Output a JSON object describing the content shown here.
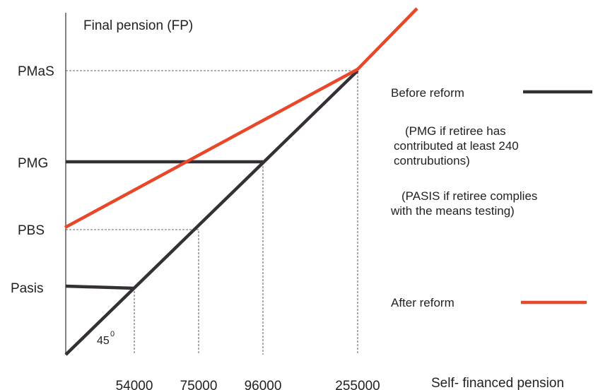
{
  "y_axis_label": "Final pension (FP)",
  "x_axis_label": "Self- financed pension",
  "y_labels": [
    "PMaS",
    "PMG",
    "PBS",
    "Pasis"
  ],
  "x_labels": [
    "54000",
    "75000",
    "96000",
    "255000"
  ],
  "angle": {
    "value": "45",
    "sup": "0"
  },
  "legend": [
    {
      "label": "Before reform",
      "notes": [
        [
          "(PMG if retiree has",
          "contributed at least 240",
          "contrubutions)"
        ],
        [
          "(PASIS if retiree complies",
          "with the  means testing)"
        ]
      ]
    },
    {
      "label": "After reform",
      "notes": []
    }
  ]
}
